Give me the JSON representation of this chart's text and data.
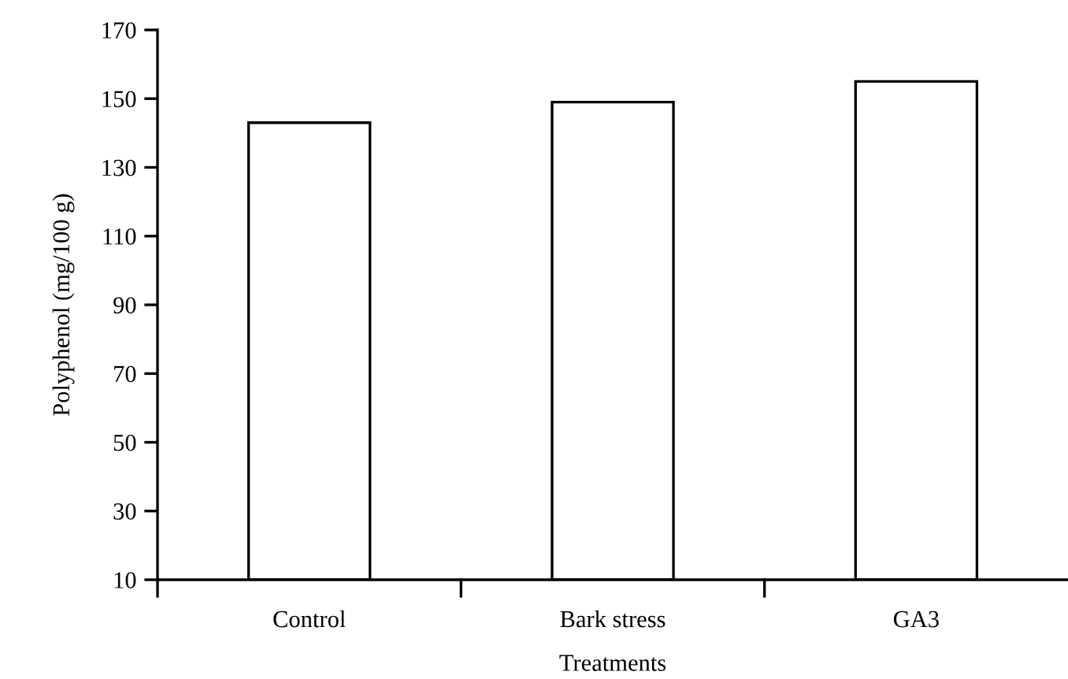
{
  "chart_data": {
    "type": "bar",
    "xlabel": "Treatments",
    "ylabel": "Polyphenol (mg/100 g)",
    "categories": [
      "Control",
      "Bark stress",
      "GA3"
    ],
    "values": [
      143,
      149,
      155
    ],
    "color": "#ffffff",
    "ylim": [
      10,
      170
    ],
    "yticks": [
      10,
      30,
      50,
      70,
      90,
      110,
      130,
      150,
      170
    ],
    "grid": false,
    "legend": false
  }
}
